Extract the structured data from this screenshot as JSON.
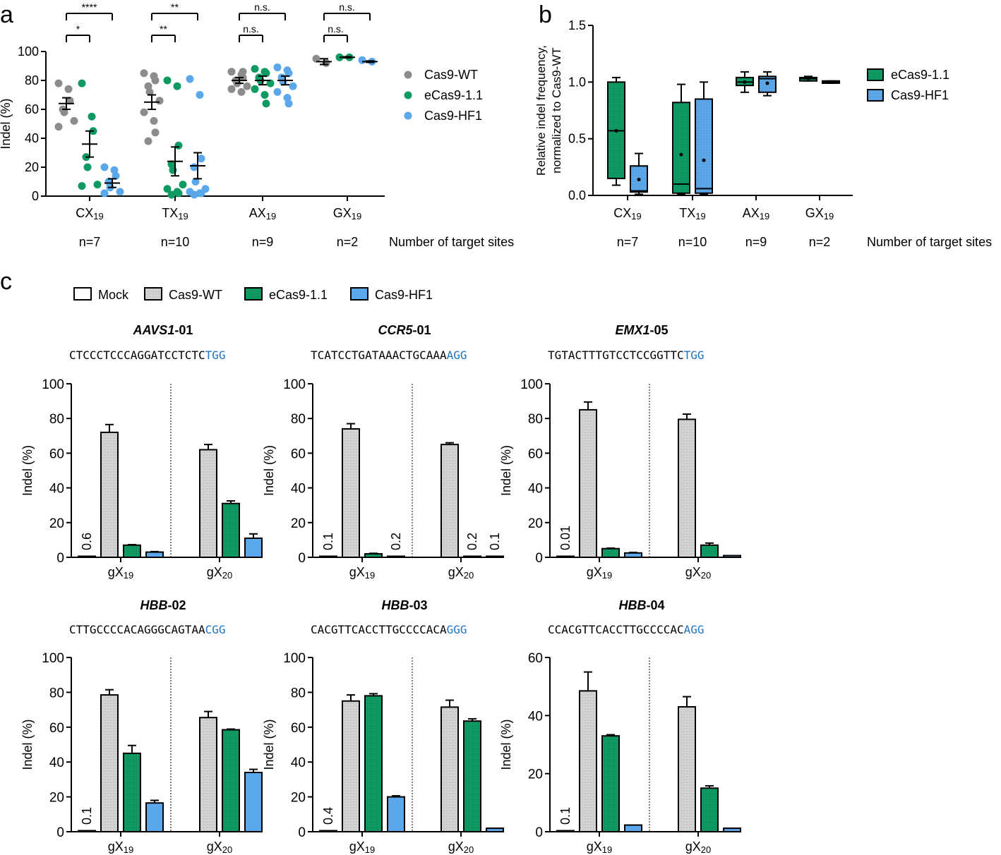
{
  "colors": {
    "wt": "#8c8c8c",
    "ecas": "#109a63",
    "hf1": "#5aa7ea",
    "mock": "#ffffff",
    "wtbar": "#d3d3d3",
    "pam": "#1f73c4"
  },
  "panel_labels": [
    "a",
    "b",
    "c"
  ],
  "common": {
    "categories": [
      "CX",
      "TX",
      "AX",
      "GX"
    ],
    "subscript": "19",
    "n_labels": [
      "n=7",
      "n=10",
      "n=9",
      "n=2"
    ],
    "target_label": "Number of target sites"
  },
  "chart_data": [
    {
      "id": "a",
      "type": "scatter",
      "ylabel": "Indel (%)",
      "ylim": [
        0,
        100
      ],
      "yticks": [
        0,
        20,
        40,
        60,
        80,
        100
      ],
      "legend": [
        "Cas9-WT",
        "eCas9-1.1",
        "Cas9-HF1"
      ],
      "legend_position": "right",
      "series": [
        {
          "name": "Cas9-WT",
          "groups": [
            {
              "points": [
                78,
                74,
                66,
                60,
                58,
                52,
                48
              ],
              "mean": 64,
              "sem": 4
            },
            {
              "points": [
                85,
                83,
                80,
                76,
                72,
                66,
                58,
                52,
                44,
                38
              ],
              "mean": 65,
              "sem": 5
            },
            {
              "points": [
                86,
                84,
                82,
                80,
                78,
                76,
                74,
                72,
                86
              ],
              "mean": 80,
              "sem": 2
            },
            {
              "points": [
                95,
                92
              ],
              "mean": 93,
              "sem": 2
            }
          ]
        },
        {
          "name": "eCas9-1.1",
          "groups": [
            {
              "points": [
                78,
                55,
                45,
                27,
                20,
                8,
                7
              ],
              "mean": 36,
              "sem": 9
            },
            {
              "points": [
                80,
                76,
                35,
                22,
                18,
                8,
                5,
                3,
                2,
                1
              ],
              "mean": 24,
              "sem": 10
            },
            {
              "points": [
                88,
                86,
                85,
                82,
                80,
                78,
                74,
                70,
                64
              ],
              "mean": 80,
              "sem": 3
            },
            {
              "points": [
                96,
                96
              ],
              "mean": 96,
              "sem": 0.4
            }
          ]
        },
        {
          "name": "Cas9-HF1",
          "groups": [
            {
              "points": [
                20,
                18,
                14,
                10,
                6,
                3,
                2
              ],
              "mean": 9,
              "sem": 3
            },
            {
              "points": [
                81,
                70,
                26,
                20,
                10,
                5,
                3,
                2,
                2,
                1
              ],
              "mean": 21,
              "sem": 9
            },
            {
              "points": [
                89,
                87,
                85,
                82,
                79,
                76,
                72,
                68,
                64
              ],
              "mean": 80,
              "sem": 3
            },
            {
              "points": [
                94,
                93
              ],
              "mean": 93,
              "sem": 0.5
            }
          ]
        }
      ],
      "significance": [
        {
          "group": 0,
          "inner": "*",
          "outer": "****"
        },
        {
          "group": 1,
          "inner": "**",
          "outer": "**"
        },
        {
          "group": 2,
          "inner": "n.s.",
          "outer": "n.s."
        },
        {
          "group": 3,
          "inner": "n.s.",
          "outer": "n.s."
        }
      ]
    },
    {
      "id": "b",
      "type": "box",
      "ylabel_line1": "Relative indel frequency,",
      "ylabel_line2": "normalized to Cas9-WT",
      "ylim": [
        0,
        1.5
      ],
      "yticks": [
        "0.0",
        "0.5",
        "1.0",
        "1.5"
      ],
      "legend": [
        "eCas9-1.1",
        "Cas9-HF1"
      ],
      "legend_position": "right",
      "series": [
        {
          "name": "eCas9-1.1",
          "boxes": [
            {
              "min": 0.09,
              "q1": 0.15,
              "median": 0.57,
              "q3": 1.0,
              "max": 1.04,
              "mean": 0.57
            },
            {
              "min": 0.01,
              "q1": 0.02,
              "median": 0.1,
              "q3": 0.82,
              "max": 0.98,
              "mean": 0.36
            },
            {
              "min": 0.91,
              "q1": 0.97,
              "median": 1.0,
              "q3": 1.04,
              "max": 1.09,
              "mean": 1.0
            },
            {
              "min": 1.01,
              "q1": 1.01,
              "median": 1.03,
              "q3": 1.04,
              "max": 1.05,
              "mean": 1.03
            }
          ]
        },
        {
          "name": "Cas9-HF1",
          "boxes": [
            {
              "min": 0.01,
              "q1": 0.03,
              "median": 0.04,
              "q3": 0.26,
              "max": 0.37,
              "mean": 0.14
            },
            {
              "min": 0.01,
              "q1": 0.02,
              "median": 0.06,
              "q3": 0.85,
              "max": 1.0,
              "mean": 0.31
            },
            {
              "min": 0.88,
              "q1": 0.91,
              "median": 1.03,
              "q3": 1.05,
              "max": 1.09,
              "mean": 0.99
            },
            {
              "min": 0.99,
              "q1": 0.99,
              "median": 1.0,
              "q3": 1.01,
              "max": 1.01,
              "mean": 1.0
            }
          ]
        }
      ]
    },
    {
      "id": "c",
      "type": "bar",
      "legend": [
        "Mock",
        "Cas9-WT",
        "eCas9-1.1",
        "Cas9-HF1"
      ],
      "legend_position": "top",
      "ylabel": "Indel (%)",
      "group_labels": [
        "gX19",
        "gX20"
      ],
      "panels": [
        {
          "title_gene": "AAVS1",
          "title_suffix": "-01",
          "seq": "CTCCCTCCCAGGATCCTCTC",
          "pam": "TGG",
          "ymax": 100,
          "yticks": [
            0,
            20,
            40,
            60,
            80,
            100
          ],
          "groups": [
            {
              "values": [
                0.6,
                72,
                7,
                3
              ],
              "errors": [
                0.1,
                4.5,
                0.3,
                0.3
              ],
              "labels": [
                "0.6",
                "",
                "",
                ""
              ]
            },
            {
              "values": [
                null,
                62,
                31,
                11
              ],
              "errors": [
                0,
                3,
                1.5,
                2.5
              ],
              "labels": [
                "",
                "",
                "",
                ""
              ]
            }
          ]
        },
        {
          "title_gene": "CCR5",
          "title_suffix": "-01",
          "seq": "TCATCCTGATAAACTGCAAA",
          "pam": "AGG",
          "ymax": 100,
          "yticks": [
            0,
            20,
            40,
            60,
            80,
            100
          ],
          "groups": [
            {
              "values": [
                0.1,
                74,
                2,
                0.2
              ],
              "errors": [
                0,
                3,
                0.3,
                0
              ],
              "labels": [
                "0.1",
                "",
                "",
                "0.2"
              ]
            },
            {
              "values": [
                null,
                65,
                0.2,
                0.1
              ],
              "errors": [
                0,
                1,
                0,
                0
              ],
              "labels": [
                "",
                "",
                "0.2",
                "0.1"
              ]
            }
          ]
        },
        {
          "title_gene": "EMX1",
          "title_suffix": "-05",
          "seq": "TGTACTTTGTCCTCCGGTTC",
          "pam": "TGG",
          "ymax": 100,
          "yticks": [
            0,
            20,
            40,
            60,
            80,
            100
          ],
          "groups": [
            {
              "values": [
                0.01,
                85,
                5,
                2.5
              ],
              "errors": [
                0,
                4.5,
                0.3,
                0.3
              ],
              "labels": [
                "0.01",
                "",
                "",
                ""
              ]
            },
            {
              "values": [
                null,
                79.5,
                7,
                1
              ],
              "errors": [
                0,
                3,
                1.2,
                0.2
              ],
              "labels": [
                "",
                "",
                "",
                ""
              ]
            }
          ]
        },
        {
          "title_gene": "HBB",
          "title_suffix": "-02",
          "seq": "CTTGCCCCACAGGGCAGTAA",
          "pam": "CGG",
          "ymax": 100,
          "yticks": [
            0,
            20,
            40,
            60,
            80,
            100
          ],
          "groups": [
            {
              "values": [
                0.1,
                78.5,
                45,
                16.5
              ],
              "errors": [
                0,
                3,
                4.5,
                1.5
              ],
              "labels": [
                "0.1",
                "",
                "",
                ""
              ]
            },
            {
              "values": [
                null,
                65.5,
                58.5,
                34
              ],
              "errors": [
                0,
                3.5,
                0.4,
                1.8
              ],
              "labels": [
                "",
                "",
                "",
                ""
              ]
            }
          ]
        },
        {
          "title_gene": "HBB",
          "title_suffix": "-03",
          "seq": "CACGTTCACCTTGCCCCACA",
          "pam": "GGG",
          "ymax": 100,
          "yticks": [
            0,
            20,
            40,
            60,
            80,
            100
          ],
          "groups": [
            {
              "values": [
                0.4,
                75,
                78,
                20
              ],
              "errors": [
                0,
                3.5,
                1.2,
                0.6
              ],
              "labels": [
                "0.4",
                "",
                "",
                ""
              ]
            },
            {
              "values": [
                null,
                71.5,
                63.5,
                2
              ],
              "errors": [
                0,
                4,
                1.3,
                0.2
              ],
              "labels": [
                "",
                "",
                "",
                ""
              ]
            }
          ]
        },
        {
          "title_gene": "HBB",
          "title_suffix": "-04",
          "seq": "CCACGTTCACCTTGCCCCAC",
          "pam": "AGG",
          "ymax": 60,
          "yticks": [
            0,
            20,
            40,
            60
          ],
          "groups": [
            {
              "values": [
                0.1,
                48.5,
                33,
                2.3
              ],
              "errors": [
                0,
                6.5,
                0.4,
                0.2
              ],
              "labels": [
                "0.1",
                "",
                "",
                ""
              ]
            },
            {
              "values": [
                null,
                43,
                15,
                1.2
              ],
              "errors": [
                0,
                3.5,
                0.8,
                0.2
              ],
              "labels": [
                "",
                "",
                "",
                ""
              ]
            }
          ]
        }
      ]
    }
  ]
}
